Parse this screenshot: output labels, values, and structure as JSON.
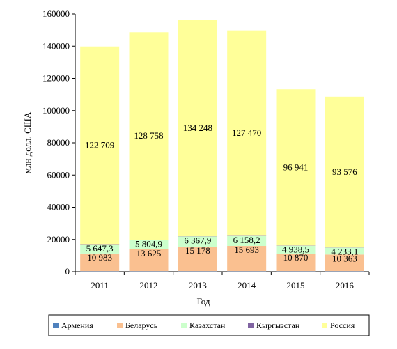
{
  "chart_data": {
    "type": "bar",
    "stacked": true,
    "categories": [
      "2011",
      "2012",
      "2013",
      "2014",
      "2015",
      "2016"
    ],
    "series": [
      {
        "name": "Армения",
        "color": "#4f81bd",
        "values": [
          300,
          300,
          300,
          300,
          300,
          300
        ],
        "labels": [
          "",
          "",
          "",
          "",
          "",
          ""
        ]
      },
      {
        "name": "Беларусь",
        "color": "#fac090",
        "values": [
          10983,
          13625,
          15178,
          15693,
          10870,
          10363
        ],
        "labels": [
          "10 983",
          "13 625",
          "15 178",
          "15 693",
          "10 870",
          "10 363"
        ]
      },
      {
        "name": "Казахстан",
        "color": "#ccffcc",
        "values": [
          5647.3,
          5804.9,
          6367.9,
          6158.2,
          4938.5,
          4233.1
        ],
        "labels": [
          "5 647,3",
          "5 804,9",
          "6 367,9",
          "6 158,2",
          "4 938,5",
          "4 233,1"
        ]
      },
      {
        "name": "Кыргызстан",
        "color": "#8064a2",
        "values": [
          150,
          150,
          150,
          150,
          150,
          150
        ],
        "labels": [
          "",
          "",
          "",
          "",
          "",
          ""
        ]
      },
      {
        "name": "Россия",
        "color": "#ffff99",
        "values": [
          122709,
          128758,
          134248,
          127470,
          96941,
          93576
        ],
        "labels": [
          "122 709",
          "128 758",
          "134 248",
          "127 470",
          "96 941",
          "93 576"
        ]
      }
    ],
    "xlabel": "Год",
    "ylabel": "млн долл. США",
    "ylim": [
      0,
      160000
    ],
    "yticks": [
      "0",
      "20000",
      "40000",
      "60000",
      "80000",
      "100000",
      "120000",
      "140000",
      "160000"
    ],
    "grid": false,
    "legend": "bottom"
  }
}
